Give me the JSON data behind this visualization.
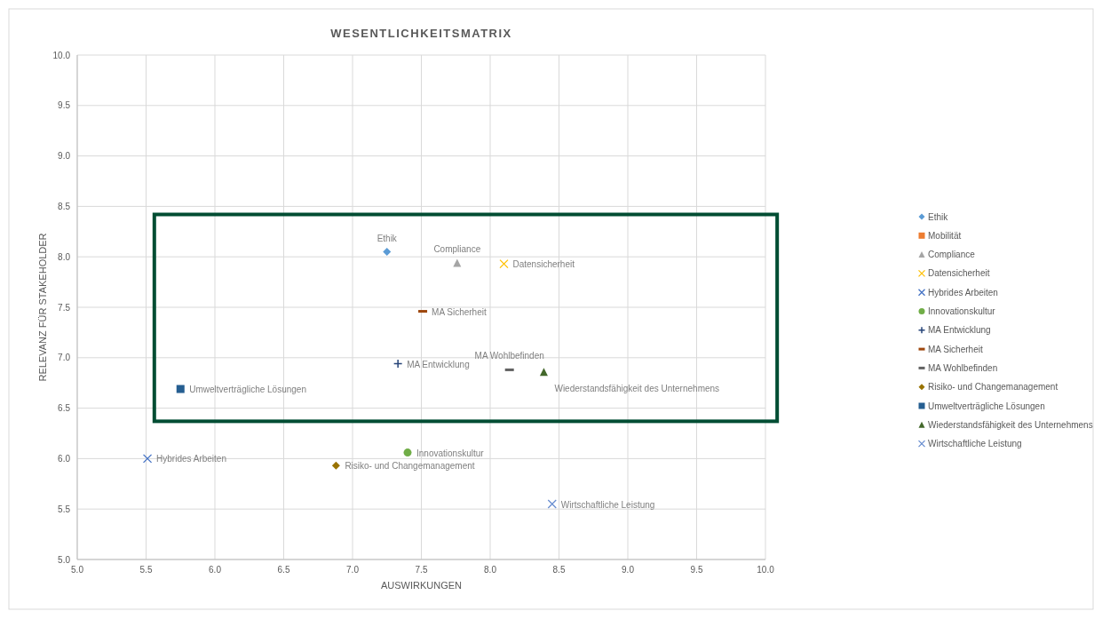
{
  "chart_data": {
    "type": "scatter",
    "title": "WESENTLICHKEITSMATRIX",
    "xlabel": "AUSWIRKUNGEN",
    "ylabel": "RELEVANZ FÜR STAKEHOLDER",
    "xlim": [
      5,
      10
    ],
    "xticks": [
      {
        "value": 5,
        "label": "5.0"
      },
      {
        "value": 5.5,
        "label": "5.5"
      },
      {
        "value": 6,
        "label": "6.0"
      },
      {
        "value": 6.5,
        "label": "6.5"
      },
      {
        "value": 7,
        "label": "7.0"
      },
      {
        "value": 7.5,
        "label": "7.5"
      },
      {
        "value": 8,
        "label": "8.0"
      },
      {
        "value": 8.5,
        "label": "8.5"
      },
      {
        "value": 9,
        "label": "9.0"
      },
      {
        "value": 9.5,
        "label": "9.5"
      },
      {
        "value": 10,
        "label": "10.0"
      }
    ],
    "ylim": [
      5,
      10
    ],
    "yticks": [
      {
        "value": 5,
        "label": "5.0"
      },
      {
        "value": 5.5,
        "label": "5.5"
      },
      {
        "value": 6,
        "label": "6.0"
      },
      {
        "value": 6.5,
        "label": "6.5"
      },
      {
        "value": 7,
        "label": "7.0"
      },
      {
        "value": 7.5,
        "label": "7.5"
      },
      {
        "value": 8,
        "label": "8.0"
      },
      {
        "value": 8.5,
        "label": "8.5"
      },
      {
        "value": 9,
        "label": "9.0"
      },
      {
        "value": 9.5,
        "label": "9.5"
      },
      {
        "value": 10,
        "label": "10.0"
      }
    ],
    "grid": true,
    "legend": "right",
    "series": [
      {
        "name": "Ethik",
        "color": "#5b9bd5",
        "marker": "diamond",
        "x": [
          7.25
        ],
        "values": [
          8.05
        ]
      },
      {
        "name": "Mobilität",
        "color": "#ed7d31",
        "marker": "square",
        "x": [
          null
        ],
        "values": [
          null
        ]
      },
      {
        "name": "Compliance",
        "color": "#a5a5a5",
        "marker": "triangle",
        "x": [
          7.76
        ],
        "values": [
          7.94
        ]
      },
      {
        "name": "Datensicherheit",
        "color": "#ffc000",
        "marker": "cross",
        "x": [
          8.1
        ],
        "values": [
          7.93
        ]
      },
      {
        "name": "Hybrides Arbeiten",
        "color": "#4472c4",
        "marker": "cross",
        "x": [
          5.51
        ],
        "values": [
          6.0
        ]
      },
      {
        "name": "Innovationskultur",
        "color": "#70ad47",
        "marker": "circle",
        "x": [
          7.4
        ],
        "values": [
          6.06
        ]
      },
      {
        "name": "MA Entwicklung",
        "color": "#264478",
        "marker": "plus",
        "x": [
          7.33
        ],
        "values": [
          6.94
        ]
      },
      {
        "name": "MA Sicherheit",
        "color": "#9e480e",
        "x": [
          7.51
        ],
        "values": [
          7.46
        ]
      },
      {
        "name": "MA Wohlbefinden",
        "color": "#636363",
        "x": [
          8.14
        ],
        "values": [
          6.88
        ]
      },
      {
        "name": "Risiko- und Changemanagement",
        "color": "#997300",
        "marker": "diamond",
        "x": [
          6.88
        ],
        "values": [
          5.93
        ]
      },
      {
        "name": "Umweltverträgliche Lösungen",
        "color": "#255e91",
        "marker": "square",
        "x": [
          5.75
        ],
        "values": [
          6.69
        ]
      },
      {
        "name": "Wiederstandsfähigkeit des Unternehmens",
        "color": "#43682b",
        "marker": "triangle",
        "x": [
          8.39
        ],
        "values": [
          6.86
        ]
      },
      {
        "name": "Wirtschaftliche Leistung",
        "color": "#698ed0",
        "marker": "cross",
        "x": [
          8.45
        ],
        "values": [
          5.55
        ]
      }
    ]
  }
}
